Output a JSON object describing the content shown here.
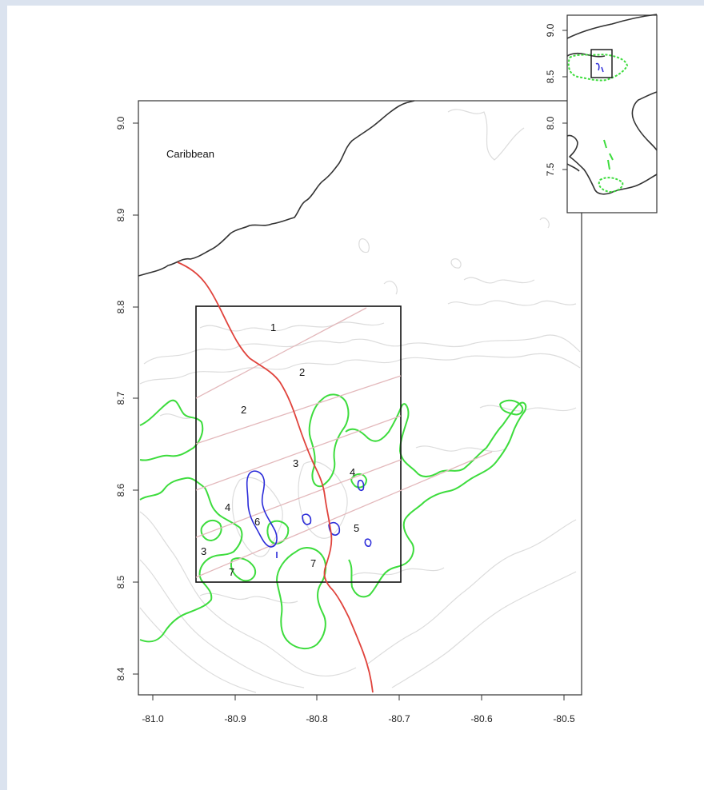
{
  "map": {
    "sea_label": "Caribbean",
    "y_ticks": [
      "9.0",
      "8.9",
      "8.8",
      "8.7",
      "8.6",
      "8.5",
      "8.4"
    ],
    "x_ticks": [
      "-81.0",
      "-80.9",
      "-80.8",
      "-80.7",
      "-80.6",
      "-80.5"
    ],
    "zone_labels": [
      "1",
      "2",
      "2",
      "3",
      "4",
      "4",
      "5",
      "6",
      "3",
      "7",
      "7"
    ],
    "colors": {
      "frame_bg": "#dbe3ef",
      "coast": "#333333",
      "river": "#e0433c",
      "green_contour": "#3ddc3d",
      "blue_contour": "#2b2bd9",
      "gray_contour": "#dcdcdc",
      "transect": "#e3b8bb"
    }
  },
  "inset": {
    "y_ticks": [
      "9.0",
      "8.5",
      "8.0",
      "7.5"
    ]
  }
}
